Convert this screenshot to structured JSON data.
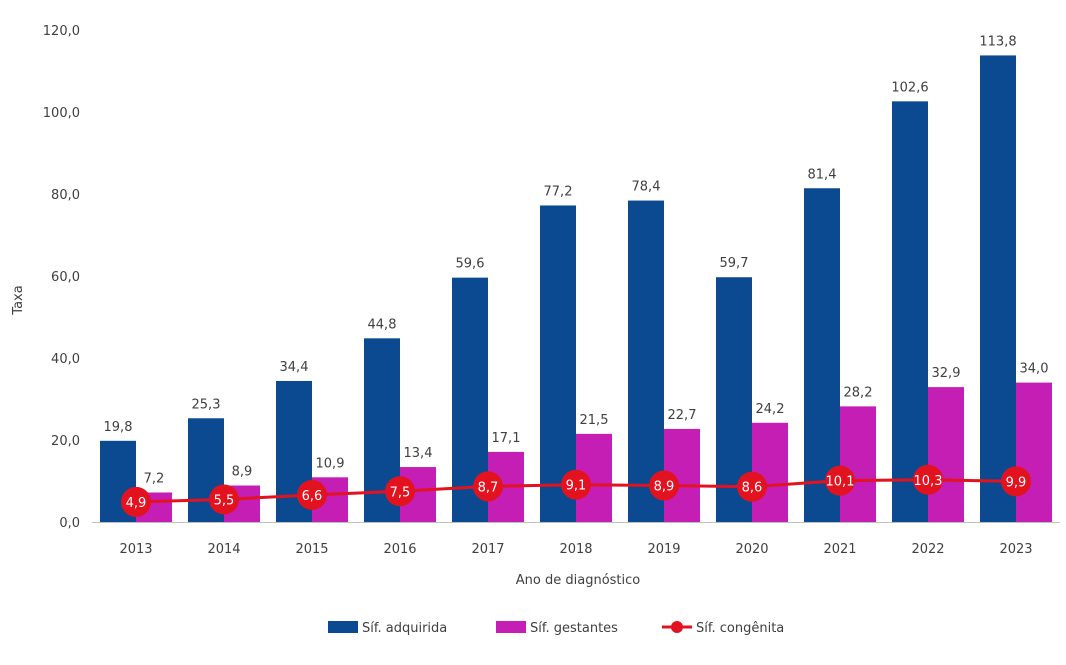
{
  "chart_data": {
    "type": "bar",
    "title": "",
    "xlabel": "Ano de diagnóstico",
    "ylabel": "Taxa",
    "ylim": [
      0,
      120
    ],
    "yticks": [
      "0,0",
      "20,0",
      "40,0",
      "60,0",
      "80,0",
      "100,0",
      "120,0"
    ],
    "yticks_values": [
      0,
      20,
      40,
      60,
      80,
      100,
      120
    ],
    "grid": false,
    "legend_position": "bottom",
    "categories": [
      "2013",
      "2014",
      "2015",
      "2016",
      "2017",
      "2018",
      "2019",
      "2020",
      "2021",
      "2022",
      "2023"
    ],
    "series": [
      {
        "name": "Síf. adquirida",
        "kind": "bar",
        "color": "#0B4A91",
        "values": [
          19.8,
          25.3,
          34.4,
          44.8,
          59.6,
          77.2,
          78.4,
          59.7,
          81.4,
          102.6,
          113.8
        ],
        "labels": [
          "19,8",
          "25,3",
          "34,4",
          "44,8",
          "59,6",
          "77,2",
          "78,4",
          "59,7",
          "81,4",
          "102,6",
          "113,8"
        ]
      },
      {
        "name": "Síf. gestantes",
        "kind": "bar",
        "color": "#C41EB4",
        "values": [
          7.2,
          8.9,
          10.9,
          13.4,
          17.1,
          21.5,
          22.7,
          24.2,
          28.2,
          32.9,
          34.0
        ],
        "labels": [
          "7,2",
          "8,9",
          "10,9",
          "13,4",
          "17,1",
          "21,5",
          "22,7",
          "24,2",
          "28,2",
          "32,9",
          "34,0"
        ]
      },
      {
        "name": "Síf. congênita",
        "kind": "line",
        "color": "#E3121F",
        "values": [
          4.9,
          5.5,
          6.6,
          7.5,
          8.7,
          9.1,
          8.9,
          8.6,
          10.1,
          10.3,
          9.9
        ],
        "labels": [
          "4,9",
          "5,5",
          "6,6",
          "7,5",
          "8,7",
          "9,1",
          "8,9",
          "8,6",
          "10,1",
          "10,3",
          "9,9"
        ]
      }
    ]
  }
}
